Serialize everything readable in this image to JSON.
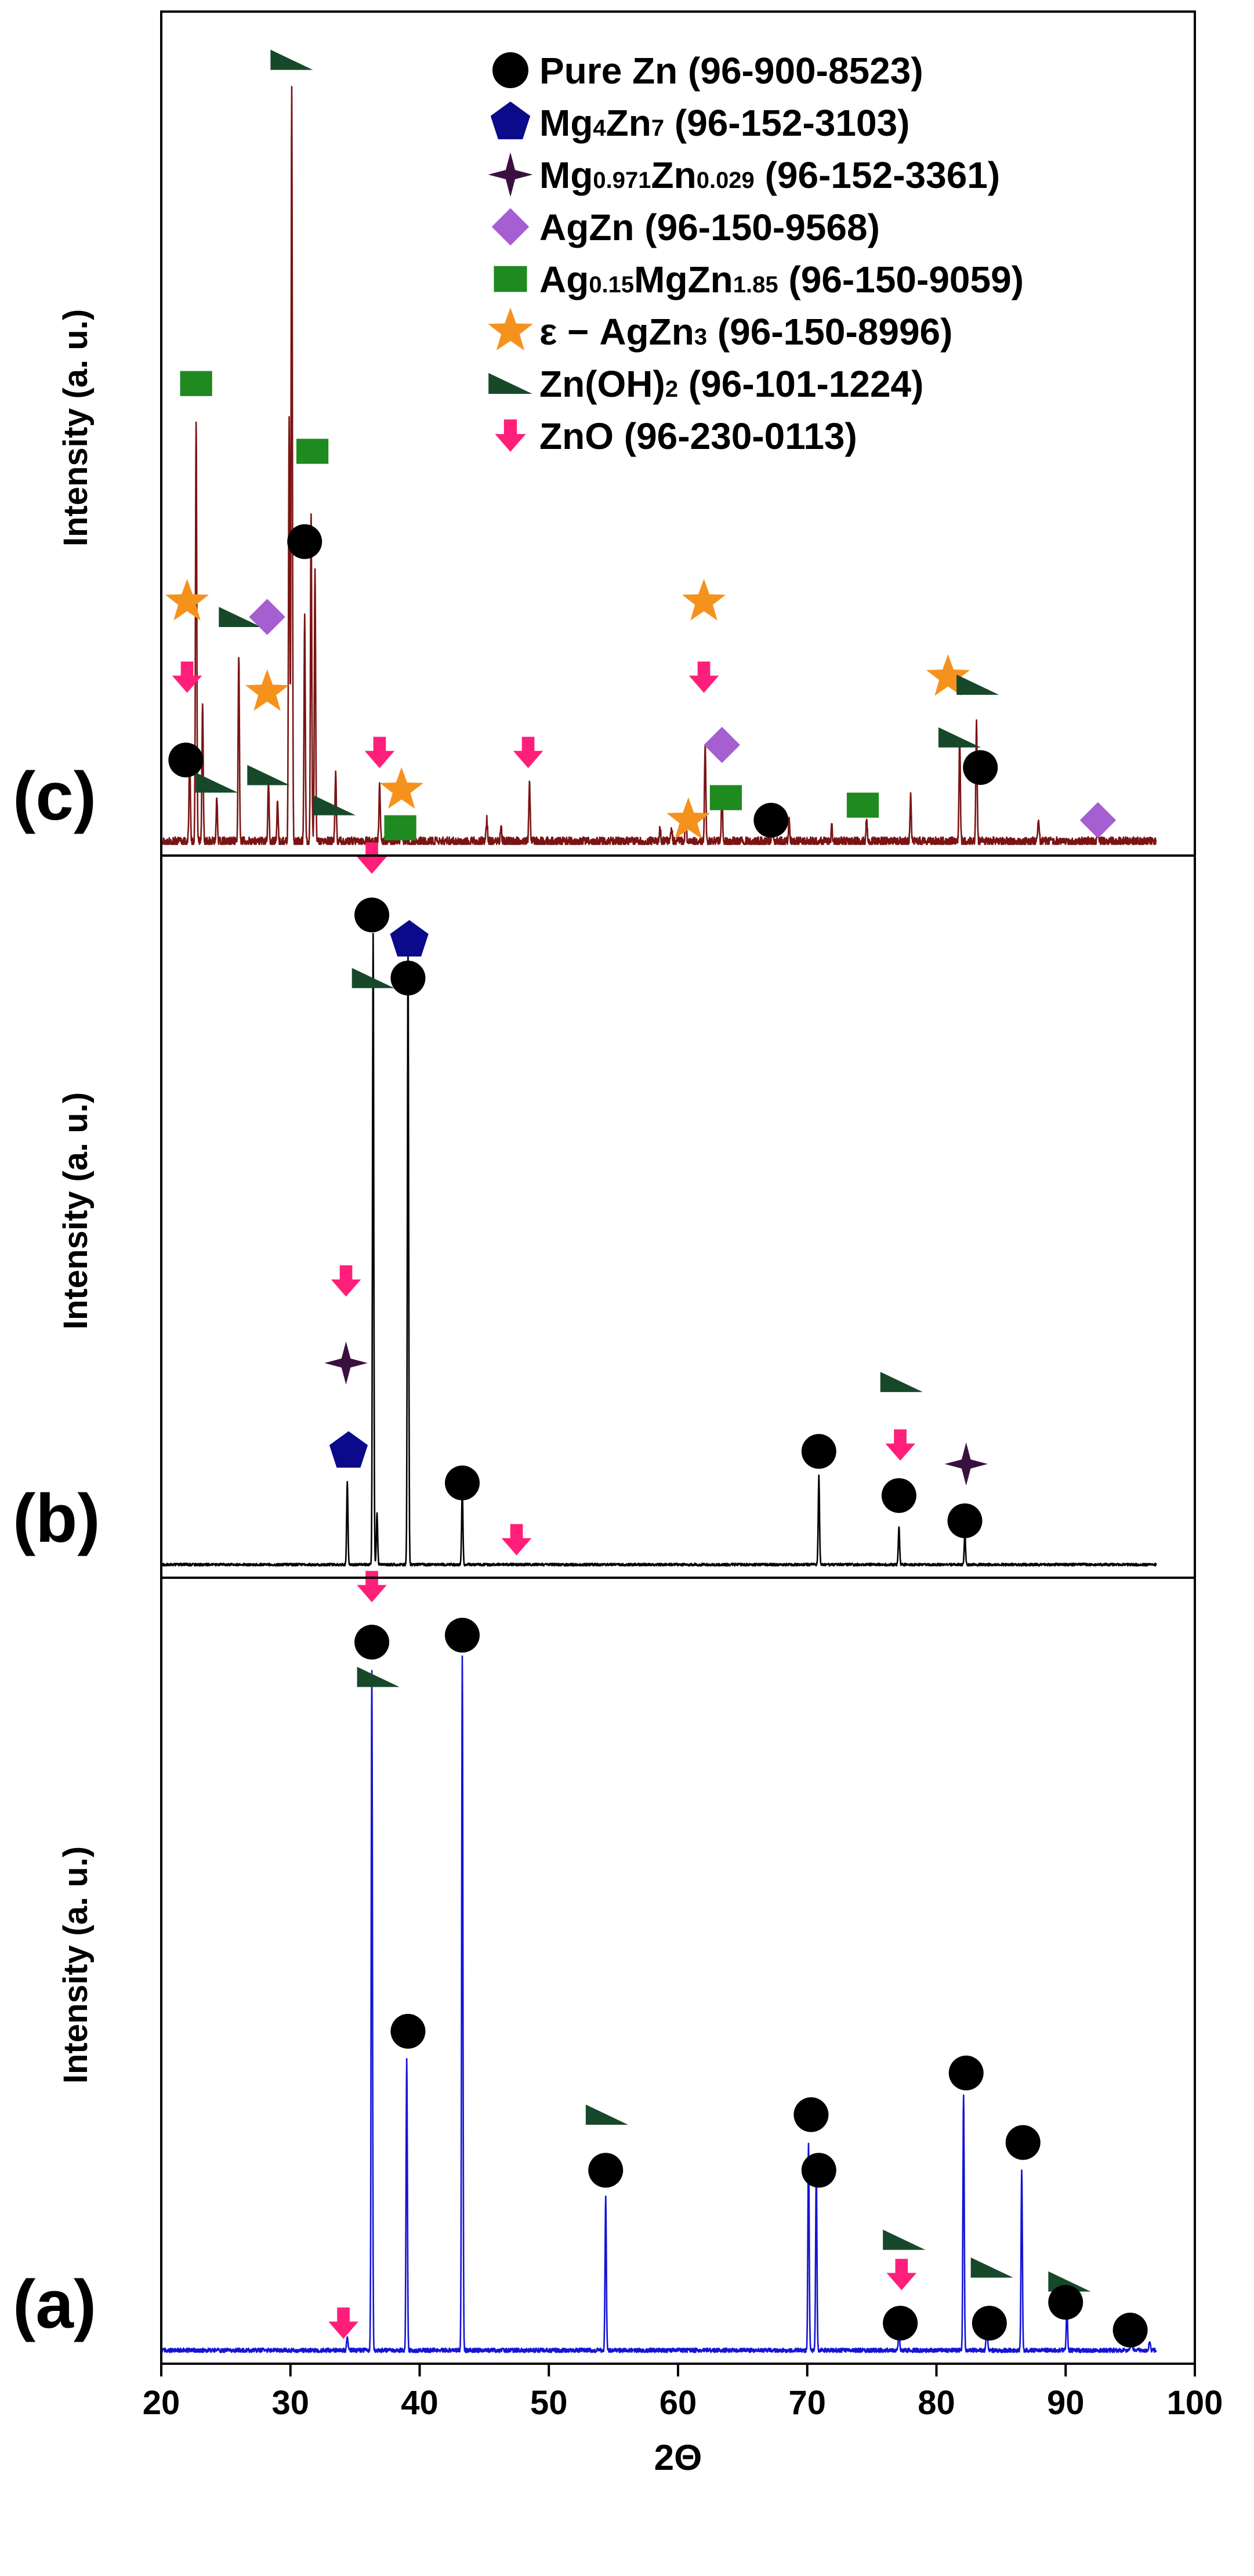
{
  "chart_data": {
    "type": "line",
    "title": "",
    "xlabel": "2Θ",
    "ylabel": "Intensity (a. u.)",
    "xlim": [
      20,
      100
    ],
    "xticks": [
      20,
      30,
      40,
      50,
      60,
      70,
      80,
      90,
      100
    ],
    "colors": {
      "axis": "#000000",
      "pure_zn": "#000000",
      "mg4zn7": "#0a0a8a",
      "mgzn_solid": "#3a1040",
      "agzn": "#a55fd0",
      "ag_mgzn": "#1f8a1f",
      "eps_agzn3": "#f5921e",
      "zn_oh2": "#17482a",
      "zno": "#ff1f7a"
    },
    "legend": {
      "location": "top-right of panel (c)",
      "entries": [
        {
          "symbol": "circle",
          "phase": "pure_zn",
          "parts": [
            [
              "Pure Zn",
              "n"
            ],
            [
              " (96-900-8523)",
              "n"
            ]
          ]
        },
        {
          "symbol": "pentagon",
          "phase": "mg4zn7",
          "parts": [
            [
              "Mg",
              "n"
            ],
            [
              "4",
              "s"
            ],
            [
              "Zn",
              "n"
            ],
            [
              "7",
              "s"
            ],
            [
              " (96-152-3103)",
              "n"
            ]
          ]
        },
        {
          "symbol": "sparkle",
          "phase": "mgzn_solid",
          "parts": [
            [
              "Mg",
              "n"
            ],
            [
              "0.971",
              "s"
            ],
            [
              "Zn",
              "n"
            ],
            [
              "0.029",
              "s"
            ],
            [
              " (96-152-3361)",
              "n"
            ]
          ]
        },
        {
          "symbol": "diamond",
          "phase": "agzn",
          "parts": [
            [
              "AgZn",
              "n"
            ],
            [
              " (96-150-9568)",
              "n"
            ]
          ]
        },
        {
          "symbol": "square",
          "phase": "ag_mgzn",
          "parts": [
            [
              "Ag",
              "n"
            ],
            [
              "0.15",
              "s"
            ],
            [
              "MgZn",
              "n"
            ],
            [
              "1.85",
              "s"
            ],
            [
              " (96-150-9059)",
              "n"
            ]
          ]
        },
        {
          "symbol": "star",
          "phase": "eps_agzn3",
          "parts": [
            [
              "ε − AgZn",
              "n"
            ],
            [
              "3",
              "s"
            ],
            [
              " (96-150-8996)",
              "n"
            ]
          ]
        },
        {
          "symbol": "wedge",
          "phase": "zn_oh2",
          "parts": [
            [
              "Zn(OH)",
              "n"
            ],
            [
              "2",
              "s"
            ],
            [
              " (96-101-1224)",
              "n"
            ]
          ]
        },
        {
          "symbol": "arrow",
          "phase": "zno",
          "parts": [
            [
              "ZnO",
              "n"
            ],
            [
              " (96-230-0113)",
              "n"
            ]
          ]
        }
      ]
    },
    "panels": [
      {
        "label": "(c)",
        "color": "#7a1414",
        "noise": 0.012,
        "peaks": [
          [
            22.2,
            0.12
          ],
          [
            22.7,
            0.56
          ],
          [
            23.2,
            0.18
          ],
          [
            24.3,
            0.06
          ],
          [
            26.0,
            0.25
          ],
          [
            28.3,
            0.08
          ],
          [
            29.0,
            0.05
          ],
          [
            29.9,
            0.56
          ],
          [
            30.1,
            1.0
          ],
          [
            31.1,
            0.3
          ],
          [
            31.6,
            0.44
          ],
          [
            31.9,
            0.36
          ],
          [
            33.5,
            0.09
          ],
          [
            36.9,
            0.08
          ],
          [
            38.6,
            0.02
          ],
          [
            45.2,
            0.03
          ],
          [
            46.3,
            0.02
          ],
          [
            48.5,
            0.08
          ],
          [
            58.6,
            0.02
          ],
          [
            59.5,
            0.02
          ],
          [
            60.6,
            0.03
          ],
          [
            62.1,
            0.13
          ],
          [
            63.4,
            0.06
          ],
          [
            67.3,
            0.04
          ],
          [
            68.6,
            0.03
          ],
          [
            71.9,
            0.02
          ],
          [
            74.6,
            0.03
          ],
          [
            78.0,
            0.06
          ],
          [
            81.8,
            0.14
          ],
          [
            83.1,
            0.16
          ],
          [
            87.9,
            0.03
          ],
          [
            92.5,
            0.02
          ]
        ],
        "markers": [
          {
            "phase": "zn_oh2",
            "x": 30.1,
            "y": 1.04
          },
          {
            "phase": "ag_mgzn",
            "x": 22.7,
            "y": 0.61
          },
          {
            "phase": "ag_mgzn",
            "x": 31.7,
            "y": 0.52
          },
          {
            "phase": "pure_zn",
            "x": 31.1,
            "y": 0.4
          },
          {
            "phase": "eps_agzn3",
            "x": 22.0,
            "y": 0.32
          },
          {
            "phase": "zn_oh2",
            "x": 26.1,
            "y": 0.3
          },
          {
            "phase": "agzn",
            "x": 28.2,
            "y": 0.3
          },
          {
            "phase": "zno",
            "x": 22.0,
            "y": 0.22
          },
          {
            "phase": "eps_agzn3",
            "x": 28.2,
            "y": 0.2
          },
          {
            "phase": "pure_zn",
            "x": 21.9,
            "y": 0.11
          },
          {
            "phase": "zn_oh2",
            "x": 24.3,
            "y": 0.08
          },
          {
            "phase": "zn_oh2",
            "x": 28.3,
            "y": 0.09
          },
          {
            "phase": "zn_oh2",
            "x": 33.4,
            "y": 0.05
          },
          {
            "phase": "zno",
            "x": 36.9,
            "y": 0.12
          },
          {
            "phase": "eps_agzn3",
            "x": 38.6,
            "y": 0.07
          },
          {
            "phase": "ag_mgzn",
            "x": 38.5,
            "y": 0.02
          },
          {
            "phase": "zno",
            "x": 48.4,
            "y": 0.12
          },
          {
            "phase": "eps_agzn3",
            "x": 62.0,
            "y": 0.32
          },
          {
            "phase": "zno",
            "x": 62.0,
            "y": 0.22
          },
          {
            "phase": "agzn",
            "x": 63.4,
            "y": 0.13
          },
          {
            "phase": "ag_mgzn",
            "x": 63.7,
            "y": 0.06
          },
          {
            "phase": "eps_agzn3",
            "x": 60.8,
            "y": 0.03
          },
          {
            "phase": "pure_zn",
            "x": 67.2,
            "y": 0.03
          },
          {
            "phase": "ag_mgzn",
            "x": 74.3,
            "y": 0.05
          },
          {
            "phase": "eps_agzn3",
            "x": 80.9,
            "y": 0.22
          },
          {
            "phase": "zn_oh2",
            "x": 83.2,
            "y": 0.21
          },
          {
            "phase": "zn_oh2",
            "x": 81.8,
            "y": 0.14
          },
          {
            "phase": "pure_zn",
            "x": 83.4,
            "y": 0.1
          },
          {
            "phase": "agzn",
            "x": 92.5,
            "y": 0.03
          }
        ]
      },
      {
        "label": "(b)",
        "color": "#000000",
        "noise": 0.004,
        "peaks": [
          [
            34.4,
            0.13
          ],
          [
            36.4,
            1.0
          ],
          [
            36.7,
            0.08
          ],
          [
            39.1,
            0.97
          ],
          [
            43.3,
            0.12
          ],
          [
            70.9,
            0.14
          ],
          [
            77.1,
            0.06
          ],
          [
            82.2,
            0.05
          ]
        ],
        "markers": [
          {
            "phase": "zno",
            "x": 36.3,
            "y": 1.12
          },
          {
            "phase": "pure_zn",
            "x": 36.3,
            "y": 1.03
          },
          {
            "phase": "mg4zn7",
            "x": 39.2,
            "y": 0.99
          },
          {
            "phase": "pure_zn",
            "x": 39.1,
            "y": 0.93
          },
          {
            "phase": "zn_oh2",
            "x": 36.4,
            "y": 0.93
          },
          {
            "phase": "zno",
            "x": 34.3,
            "y": 0.45
          },
          {
            "phase": "mgzn_solid",
            "x": 34.3,
            "y": 0.32
          },
          {
            "phase": "mg4zn7",
            "x": 34.5,
            "y": 0.18
          },
          {
            "phase": "pure_zn",
            "x": 43.3,
            "y": 0.13
          },
          {
            "phase": "zno",
            "x": 47.5,
            "y": 0.04
          },
          {
            "phase": "pure_zn",
            "x": 70.9,
            "y": 0.18
          },
          {
            "phase": "zn_oh2",
            "x": 77.3,
            "y": 0.29
          },
          {
            "phase": "zno",
            "x": 77.2,
            "y": 0.19
          },
          {
            "phase": "pure_zn",
            "x": 77.1,
            "y": 0.11
          },
          {
            "phase": "mgzn_solid",
            "x": 82.3,
            "y": 0.16
          },
          {
            "phase": "pure_zn",
            "x": 82.2,
            "y": 0.07
          }
        ]
      },
      {
        "label": "(a)",
        "color": "#1414d6",
        "noise": 0.006,
        "peaks": [
          [
            34.4,
            0.02
          ],
          [
            36.3,
            0.98
          ],
          [
            39.0,
            0.42
          ],
          [
            43.3,
            1.0
          ],
          [
            54.4,
            0.22
          ],
          [
            70.1,
            0.3
          ],
          [
            70.7,
            0.26
          ],
          [
            77.1,
            0.03
          ],
          [
            82.1,
            0.37
          ],
          [
            83.9,
            0.05
          ],
          [
            86.6,
            0.26
          ],
          [
            90.1,
            0.06
          ],
          [
            95.1,
            0.02
          ],
          [
            96.5,
            0.015
          ]
        ],
        "markers": [
          {
            "phase": "zno",
            "x": 36.3,
            "y": 1.1
          },
          {
            "phase": "pure_zn",
            "x": 36.3,
            "y": 1.02
          },
          {
            "phase": "pure_zn",
            "x": 43.3,
            "y": 1.03
          },
          {
            "phase": "zn_oh2",
            "x": 36.8,
            "y": 0.97
          },
          {
            "phase": "pure_zn",
            "x": 39.1,
            "y": 0.46
          },
          {
            "phase": "zn_oh2",
            "x": 54.5,
            "y": 0.34
          },
          {
            "phase": "pure_zn",
            "x": 54.4,
            "y": 0.26
          },
          {
            "phase": "pure_zn",
            "x": 70.3,
            "y": 0.34
          },
          {
            "phase": "pure_zn",
            "x": 70.9,
            "y": 0.26
          },
          {
            "phase": "zn_oh2",
            "x": 77.5,
            "y": 0.16
          },
          {
            "phase": "zno",
            "x": 77.3,
            "y": 0.11
          },
          {
            "phase": "pure_zn",
            "x": 77.2,
            "y": 0.04
          },
          {
            "phase": "pure_zn",
            "x": 82.3,
            "y": 0.4
          },
          {
            "phase": "pure_zn",
            "x": 86.7,
            "y": 0.3
          },
          {
            "phase": "zn_oh2",
            "x": 84.3,
            "y": 0.12
          },
          {
            "phase": "pure_zn",
            "x": 84.1,
            "y": 0.04
          },
          {
            "phase": "zn_oh2",
            "x": 90.3,
            "y": 0.1
          },
          {
            "phase": "pure_zn",
            "x": 90.0,
            "y": 0.07
          },
          {
            "phase": "zno",
            "x": 34.1,
            "y": 0.04
          },
          {
            "phase": "pure_zn",
            "x": 95.0,
            "y": 0.03
          }
        ]
      }
    ]
  }
}
